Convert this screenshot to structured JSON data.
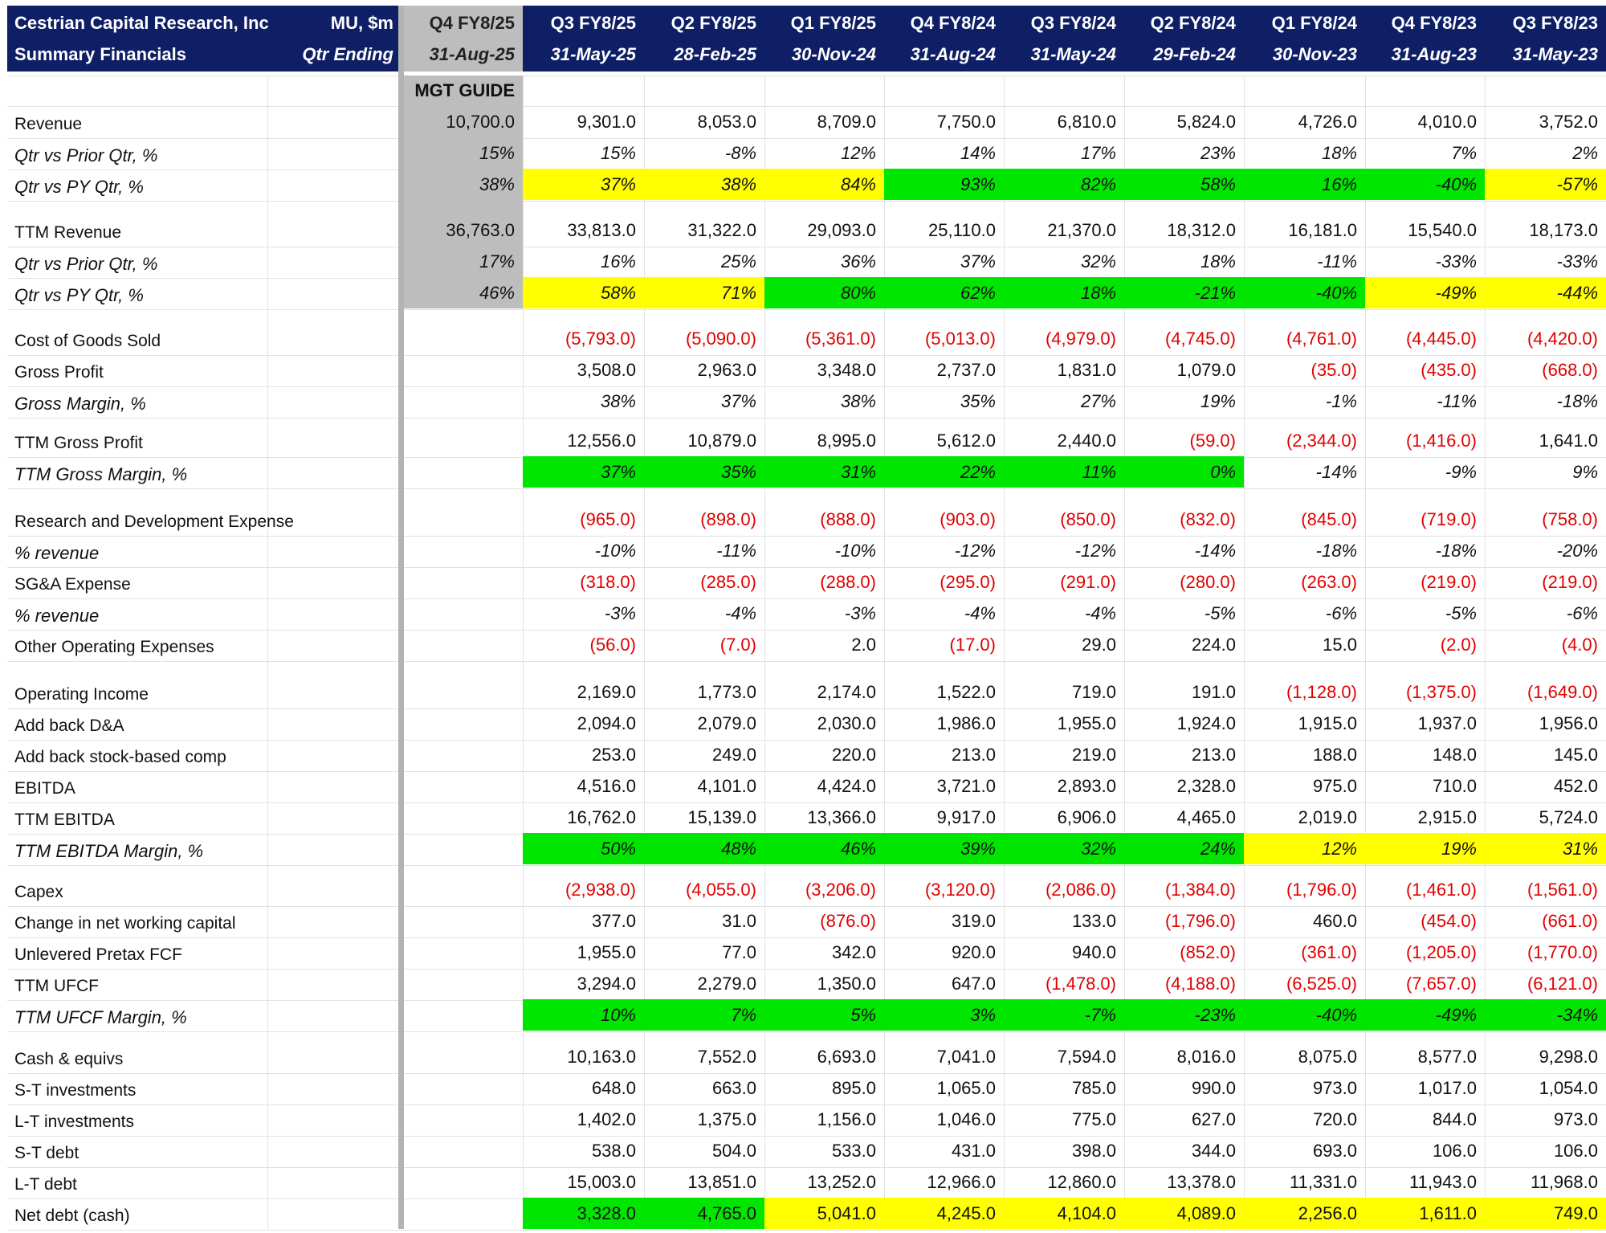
{
  "header": {
    "company": "Cestrian Capital Research, Inc",
    "subtitle": "Summary Financials",
    "units": "MU, $m",
    "qtr_ending": "Qtr Ending"
  },
  "guide_label": "MGT GUIDE",
  "columns": [
    {
      "q": "Q4 FY8/25",
      "d": "31-Aug-25"
    },
    {
      "q": "Q3 FY8/25",
      "d": "31-May-25"
    },
    {
      "q": "Q2 FY8/25",
      "d": "28-Feb-25"
    },
    {
      "q": "Q1 FY8/25",
      "d": "30-Nov-24"
    },
    {
      "q": "Q4 FY8/24",
      "d": "31-Aug-24"
    },
    {
      "q": "Q3 FY8/24",
      "d": "31-May-24"
    },
    {
      "q": "Q2 FY8/24",
      "d": "29-Feb-24"
    },
    {
      "q": "Q1 FY8/24",
      "d": "30-Nov-23"
    },
    {
      "q": "Q4 FY8/23",
      "d": "31-Aug-23"
    },
    {
      "q": "Q3 FY8/23",
      "d": "31-May-23"
    }
  ],
  "colors": {
    "header_navy": "#0f1f66",
    "guide_grey": "#bdbdbd",
    "green": "#00e600",
    "yellow": "#ffff00",
    "negative": "#e00000"
  },
  "rows": [
    {
      "label": "Revenue",
      "italic": false,
      "values": [
        "10,700.0",
        "9,301.0",
        "8,053.0",
        "8,709.0",
        "7,750.0",
        "6,810.0",
        "5,824.0",
        "4,726.0",
        "4,010.0",
        "3,752.0"
      ],
      "fills": [
        "g",
        "",
        "",
        "",
        "",
        "",
        "",
        "",
        "",
        ""
      ]
    },
    {
      "label": "Qtr vs Prior Qtr, %",
      "italic": true,
      "values": [
        "15%",
        "15%",
        "-8%",
        "12%",
        "14%",
        "17%",
        "23%",
        "18%",
        "7%",
        "2%"
      ],
      "fills": [
        "g",
        "",
        "",
        "",
        "",
        "",
        "",
        "",
        "",
        ""
      ]
    },
    {
      "label": "Qtr vs PY Qtr, %",
      "italic": true,
      "values": [
        "38%",
        "37%",
        "38%",
        "84%",
        "93%",
        "82%",
        "58%",
        "16%",
        "-40%",
        "-57%"
      ],
      "fills": [
        "g",
        "y",
        "y",
        "y",
        "gr",
        "gr",
        "gr",
        "gr",
        "gr",
        "y"
      ]
    },
    {
      "label": "TTM Revenue",
      "italic": false,
      "values": [
        "36,763.0",
        "33,813.0",
        "31,322.0",
        "29,093.0",
        "25,110.0",
        "21,370.0",
        "18,312.0",
        "16,181.0",
        "15,540.0",
        "18,173.0"
      ],
      "fills": [
        "g",
        "",
        "",
        "",
        "",
        "",
        "",
        "",
        "",
        ""
      ]
    },
    {
      "label": "Qtr vs Prior Qtr, %",
      "italic": true,
      "values": [
        "17%",
        "16%",
        "25%",
        "36%",
        "37%",
        "32%",
        "18%",
        "-11%",
        "-33%",
        "-33%"
      ],
      "fills": [
        "g",
        "",
        "",
        "",
        "",
        "",
        "",
        "",
        "",
        ""
      ]
    },
    {
      "label": "Qtr vs PY Qtr, %",
      "italic": true,
      "values": [
        "46%",
        "58%",
        "71%",
        "80%",
        "62%",
        "18%",
        "-21%",
        "-40%",
        "-49%",
        "-44%"
      ],
      "fills": [
        "g",
        "y",
        "y",
        "gr",
        "gr",
        "gr",
        "gr",
        "gr",
        "y",
        "y"
      ]
    },
    {
      "label": "Cost of Goods Sold",
      "italic": false,
      "values": [
        "",
        "(5,793.0)",
        "(5,090.0)",
        "(5,361.0)",
        "(5,013.0)",
        "(4,979.0)",
        "(4,745.0)",
        "(4,761.0)",
        "(4,445.0)",
        "(4,420.0)"
      ],
      "fills": [
        "",
        "",
        "",
        "",
        "",
        "",
        "",
        "",
        "",
        ""
      ]
    },
    {
      "label": "Gross Profit",
      "italic": false,
      "values": [
        "",
        "3,508.0",
        "2,963.0",
        "3,348.0",
        "2,737.0",
        "1,831.0",
        "1,079.0",
        "(35.0)",
        "(435.0)",
        "(668.0)"
      ],
      "fills": [
        "",
        "",
        "",
        "",
        "",
        "",
        "",
        "",
        "",
        ""
      ]
    },
    {
      "label": "Gross Margin, %",
      "italic": true,
      "values": [
        "",
        "38%",
        "37%",
        "38%",
        "35%",
        "27%",
        "19%",
        "-1%",
        "-11%",
        "-18%"
      ],
      "fills": [
        "",
        "",
        "",
        "",
        "",
        "",
        "",
        "",
        "",
        ""
      ]
    },
    {
      "label": "TTM Gross Profit",
      "italic": false,
      "values": [
        "",
        "12,556.0",
        "10,879.0",
        "8,995.0",
        "5,612.0",
        "2,440.0",
        "(59.0)",
        "(2,344.0)",
        "(1,416.0)",
        "1,641.0"
      ],
      "fills": [
        "",
        "",
        "",
        "",
        "",
        "",
        "",
        "",
        "",
        ""
      ]
    },
    {
      "label": "TTM Gross Margin, %",
      "italic": true,
      "values": [
        "",
        "37%",
        "35%",
        "31%",
        "22%",
        "11%",
        "0%",
        "-14%",
        "-9%",
        "9%"
      ],
      "fills": [
        "",
        "gr",
        "gr",
        "gr",
        "gr",
        "gr",
        "gr",
        "",
        "",
        ""
      ]
    },
    {
      "label": "Research and Development Expense",
      "italic": false,
      "values": [
        "",
        "(965.0)",
        "(898.0)",
        "(888.0)",
        "(903.0)",
        "(850.0)",
        "(832.0)",
        "(845.0)",
        "(719.0)",
        "(758.0)"
      ],
      "fills": [
        "",
        "",
        "",
        "",
        "",
        "",
        "",
        "",
        "",
        ""
      ]
    },
    {
      "label": "% revenue",
      "italic": true,
      "values": [
        "",
        "-10%",
        "-11%",
        "-10%",
        "-12%",
        "-12%",
        "-14%",
        "-18%",
        "-18%",
        "-20%"
      ],
      "fills": [
        "",
        "",
        "",
        "",
        "",
        "",
        "",
        "",
        "",
        ""
      ]
    },
    {
      "label": "SG&A Expense",
      "italic": false,
      "values": [
        "",
        "(318.0)",
        "(285.0)",
        "(288.0)",
        "(295.0)",
        "(291.0)",
        "(280.0)",
        "(263.0)",
        "(219.0)",
        "(219.0)"
      ],
      "fills": [
        "",
        "",
        "",
        "",
        "",
        "",
        "",
        "",
        "",
        ""
      ]
    },
    {
      "label": "% revenue",
      "italic": true,
      "values": [
        "",
        "-3%",
        "-4%",
        "-3%",
        "-4%",
        "-4%",
        "-5%",
        "-6%",
        "-5%",
        "-6%"
      ],
      "fills": [
        "",
        "",
        "",
        "",
        "",
        "",
        "",
        "",
        "",
        ""
      ]
    },
    {
      "label": "Other Operating Expenses",
      "italic": false,
      "values": [
        "",
        "(56.0)",
        "(7.0)",
        "2.0",
        "(17.0)",
        "29.0",
        "224.0",
        "15.0",
        "(2.0)",
        "(4.0)"
      ],
      "fills": [
        "",
        "",
        "",
        "",
        "",
        "",
        "",
        "",
        "",
        ""
      ]
    },
    {
      "label": "Operating Income",
      "italic": false,
      "values": [
        "",
        "2,169.0",
        "1,773.0",
        "2,174.0",
        "1,522.0",
        "719.0",
        "191.0",
        "(1,128.0)",
        "(1,375.0)",
        "(1,649.0)"
      ],
      "fills": [
        "",
        "",
        "",
        "",
        "",
        "",
        "",
        "",
        "",
        ""
      ]
    },
    {
      "label": "Add back D&A",
      "italic": false,
      "values": [
        "",
        "2,094.0",
        "2,079.0",
        "2,030.0",
        "1,986.0",
        "1,955.0",
        "1,924.0",
        "1,915.0",
        "1,937.0",
        "1,956.0"
      ],
      "fills": [
        "",
        "",
        "",
        "",
        "",
        "",
        "",
        "",
        "",
        ""
      ]
    },
    {
      "label": "Add back stock-based comp",
      "italic": false,
      "values": [
        "",
        "253.0",
        "249.0",
        "220.0",
        "213.0",
        "219.0",
        "213.0",
        "188.0",
        "148.0",
        "145.0"
      ],
      "fills": [
        "",
        "",
        "",
        "",
        "",
        "",
        "",
        "",
        "",
        ""
      ]
    },
    {
      "label": "EBITDA",
      "italic": false,
      "values": [
        "",
        "4,516.0",
        "4,101.0",
        "4,424.0",
        "3,721.0",
        "2,893.0",
        "2,328.0",
        "975.0",
        "710.0",
        "452.0"
      ],
      "fills": [
        "",
        "",
        "",
        "",
        "",
        "",
        "",
        "",
        "",
        ""
      ]
    },
    {
      "label": "TTM EBITDA",
      "italic": false,
      "values": [
        "",
        "16,762.0",
        "15,139.0",
        "13,366.0",
        "9,917.0",
        "6,906.0",
        "4,465.0",
        "2,019.0",
        "2,915.0",
        "5,724.0"
      ],
      "fills": [
        "",
        "",
        "",
        "",
        "",
        "",
        "",
        "",
        "",
        ""
      ]
    },
    {
      "label": "TTM EBITDA Margin, %",
      "italic": true,
      "values": [
        "",
        "50%",
        "48%",
        "46%",
        "39%",
        "32%",
        "24%",
        "12%",
        "19%",
        "31%"
      ],
      "fills": [
        "",
        "gr",
        "gr",
        "gr",
        "gr",
        "gr",
        "gr",
        "y",
        "y",
        "y"
      ]
    },
    {
      "label": "Capex",
      "italic": false,
      "values": [
        "",
        "(2,938.0)",
        "(4,055.0)",
        "(3,206.0)",
        "(3,120.0)",
        "(2,086.0)",
        "(1,384.0)",
        "(1,796.0)",
        "(1,461.0)",
        "(1,561.0)"
      ],
      "fills": [
        "",
        "",
        "",
        "",
        "",
        "",
        "",
        "",
        "",
        ""
      ]
    },
    {
      "label": "Change in net working capital",
      "italic": false,
      "values": [
        "",
        "377.0",
        "31.0",
        "(876.0)",
        "319.0",
        "133.0",
        "(1,796.0)",
        "460.0",
        "(454.0)",
        "(661.0)"
      ],
      "fills": [
        "",
        "",
        "",
        "",
        "",
        "",
        "",
        "",
        "",
        ""
      ]
    },
    {
      "label": "Unlevered Pretax FCF",
      "italic": false,
      "values": [
        "",
        "1,955.0",
        "77.0",
        "342.0",
        "920.0",
        "940.0",
        "(852.0)",
        "(361.0)",
        "(1,205.0)",
        "(1,770.0)"
      ],
      "fills": [
        "",
        "",
        "",
        "",
        "",
        "",
        "",
        "",
        "",
        ""
      ]
    },
    {
      "label": "TTM UFCF",
      "italic": false,
      "values": [
        "",
        "3,294.0",
        "2,279.0",
        "1,350.0",
        "647.0",
        "(1,478.0)",
        "(4,188.0)",
        "(6,525.0)",
        "(7,657.0)",
        "(6,121.0)"
      ],
      "fills": [
        "",
        "",
        "",
        "",
        "",
        "",
        "",
        "",
        "",
        ""
      ]
    },
    {
      "label": "TTM UFCF Margin, %",
      "italic": true,
      "values": [
        "",
        "10%",
        "7%",
        "5%",
        "3%",
        "-7%",
        "-23%",
        "-40%",
        "-49%",
        "-34%"
      ],
      "fills": [
        "",
        "gr",
        "gr",
        "gr",
        "gr",
        "gr",
        "gr",
        "gr",
        "gr",
        "gr"
      ]
    },
    {
      "label": "Cash & equivs",
      "italic": false,
      "values": [
        "",
        "10,163.0",
        "7,552.0",
        "6,693.0",
        "7,041.0",
        "7,594.0",
        "8,016.0",
        "8,075.0",
        "8,577.0",
        "9,298.0"
      ],
      "fills": [
        "",
        "",
        "",
        "",
        "",
        "",
        "",
        "",
        "",
        ""
      ]
    },
    {
      "label": "S-T investments",
      "italic": false,
      "values": [
        "",
        "648.0",
        "663.0",
        "895.0",
        "1,065.0",
        "785.0",
        "990.0",
        "973.0",
        "1,017.0",
        "1,054.0"
      ],
      "fills": [
        "",
        "",
        "",
        "",
        "",
        "",
        "",
        "",
        "",
        ""
      ]
    },
    {
      "label": "L-T investments",
      "italic": false,
      "values": [
        "",
        "1,402.0",
        "1,375.0",
        "1,156.0",
        "1,046.0",
        "775.0",
        "627.0",
        "720.0",
        "844.0",
        "973.0"
      ],
      "fills": [
        "",
        "",
        "",
        "",
        "",
        "",
        "",
        "",
        "",
        ""
      ]
    },
    {
      "label": "S-T debt",
      "italic": false,
      "values": [
        "",
        "538.0",
        "504.0",
        "533.0",
        "431.0",
        "398.0",
        "344.0",
        "693.0",
        "106.0",
        "106.0"
      ],
      "fills": [
        "",
        "",
        "",
        "",
        "",
        "",
        "",
        "",
        "",
        ""
      ]
    },
    {
      "label": "L-T debt",
      "italic": false,
      "values": [
        "",
        "15,003.0",
        "13,851.0",
        "13,252.0",
        "12,966.0",
        "12,860.0",
        "13,378.0",
        "11,331.0",
        "11,943.0",
        "11,968.0"
      ],
      "fills": [
        "",
        "",
        "",
        "",
        "",
        "",
        "",
        "",
        "",
        ""
      ]
    },
    {
      "label": "Net debt (cash)",
      "italic": false,
      "values": [
        "",
        "3,328.0",
        "4,765.0",
        "5,041.0",
        "4,245.0",
        "4,104.0",
        "4,089.0",
        "2,256.0",
        "1,611.0",
        "749.0"
      ],
      "fills": [
        "",
        "gr",
        "gr",
        "y",
        "y",
        "y",
        "y",
        "y",
        "y",
        "y"
      ]
    }
  ]
}
